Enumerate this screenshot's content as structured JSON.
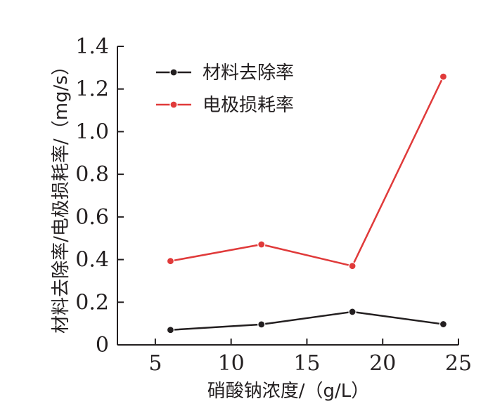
{
  "chart_data": {
    "type": "line",
    "xlabel": "硝酸钠浓度/（g/L）",
    "ylabel": "材料去除率/电极损耗率/（mg/s）",
    "xlim": [
      2.5,
      25
    ],
    "ylim": [
      0,
      1.4
    ],
    "x_ticks": [
      "5",
      "10",
      "15",
      "20",
      "25"
    ],
    "y_ticks": [
      "0",
      "0.2",
      "0.4",
      "0.6",
      "0.8",
      "1.0",
      "1.2",
      "1.4"
    ],
    "legend_position": "top-left",
    "grid": false,
    "series": [
      {
        "name": "材料去除率",
        "color": "#231f20",
        "x": [
          6,
          12,
          18,
          24
        ],
        "values": [
          0.07,
          0.096,
          0.155,
          0.097
        ]
      },
      {
        "name": "电极损耗率",
        "color": "#e03a3a",
        "x": [
          6,
          12,
          18,
          24
        ],
        "values": [
          0.393,
          0.471,
          0.37,
          1.258
        ]
      }
    ]
  }
}
